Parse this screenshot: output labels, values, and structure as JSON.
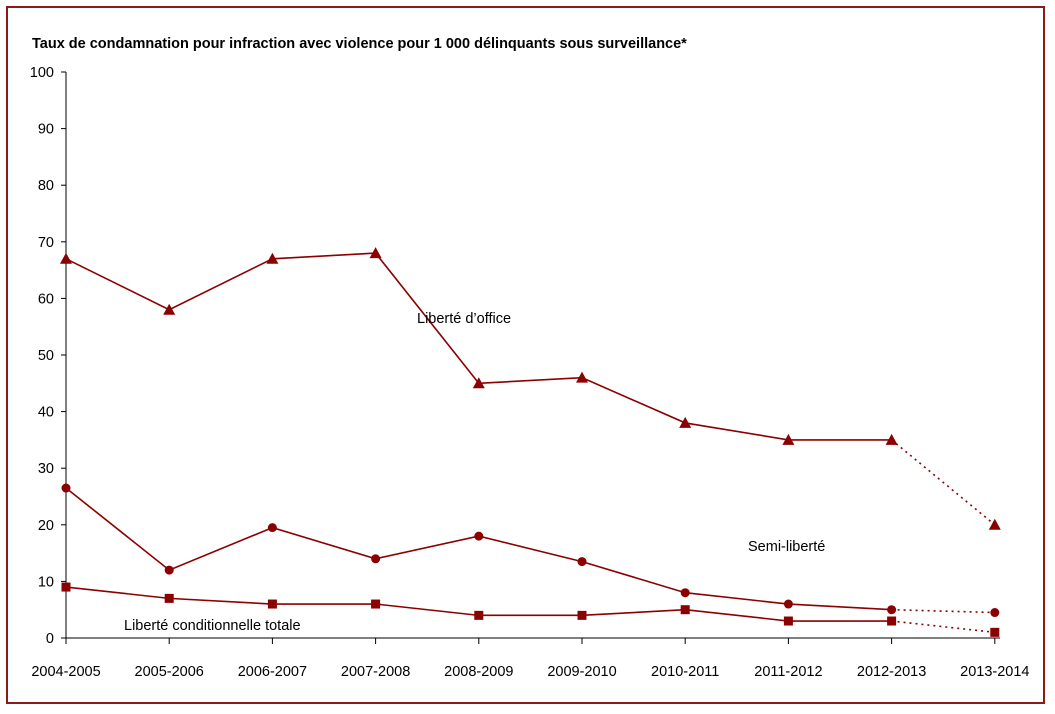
{
  "chart_data": {
    "type": "line",
    "title": "Taux de condamnation pour infraction avec violence pour 1 000 délinquants sous surveillance*",
    "xlabel": "",
    "ylabel": "",
    "ylim": [
      0,
      100
    ],
    "yticks": [
      "0",
      "10",
      "20",
      "30",
      "40",
      "50",
      "60",
      "70",
      "80",
      "90",
      "100"
    ],
    "categories": [
      "2004-2005",
      "2005-2006",
      "2006-2007",
      "2007-2008",
      "2008-2009",
      "2009-2010",
      "2010-2011",
      "2011-2012",
      "2012-2013",
      "2013-2014"
    ],
    "grid": false,
    "line_color": "#8b0000",
    "series": [
      {
        "name": "Liberté d’office",
        "marker": "triangle",
        "values": [
          67,
          58,
          67,
          68,
          45,
          46,
          38,
          35,
          35,
          20
        ],
        "dashed_last_segment": true
      },
      {
        "name": "Semi-liberté",
        "marker": "circle",
        "values": [
          26.5,
          12,
          19.5,
          14,
          18,
          13.5,
          8,
          6,
          5,
          4.5
        ],
        "dashed_last_segment": true
      },
      {
        "name": "Liberté conditionnelle totale",
        "marker": "square",
        "values": [
          9,
          7,
          6,
          6,
          4,
          4,
          5,
          3,
          3,
          1
        ],
        "dashed_last_segment": true
      }
    ]
  }
}
